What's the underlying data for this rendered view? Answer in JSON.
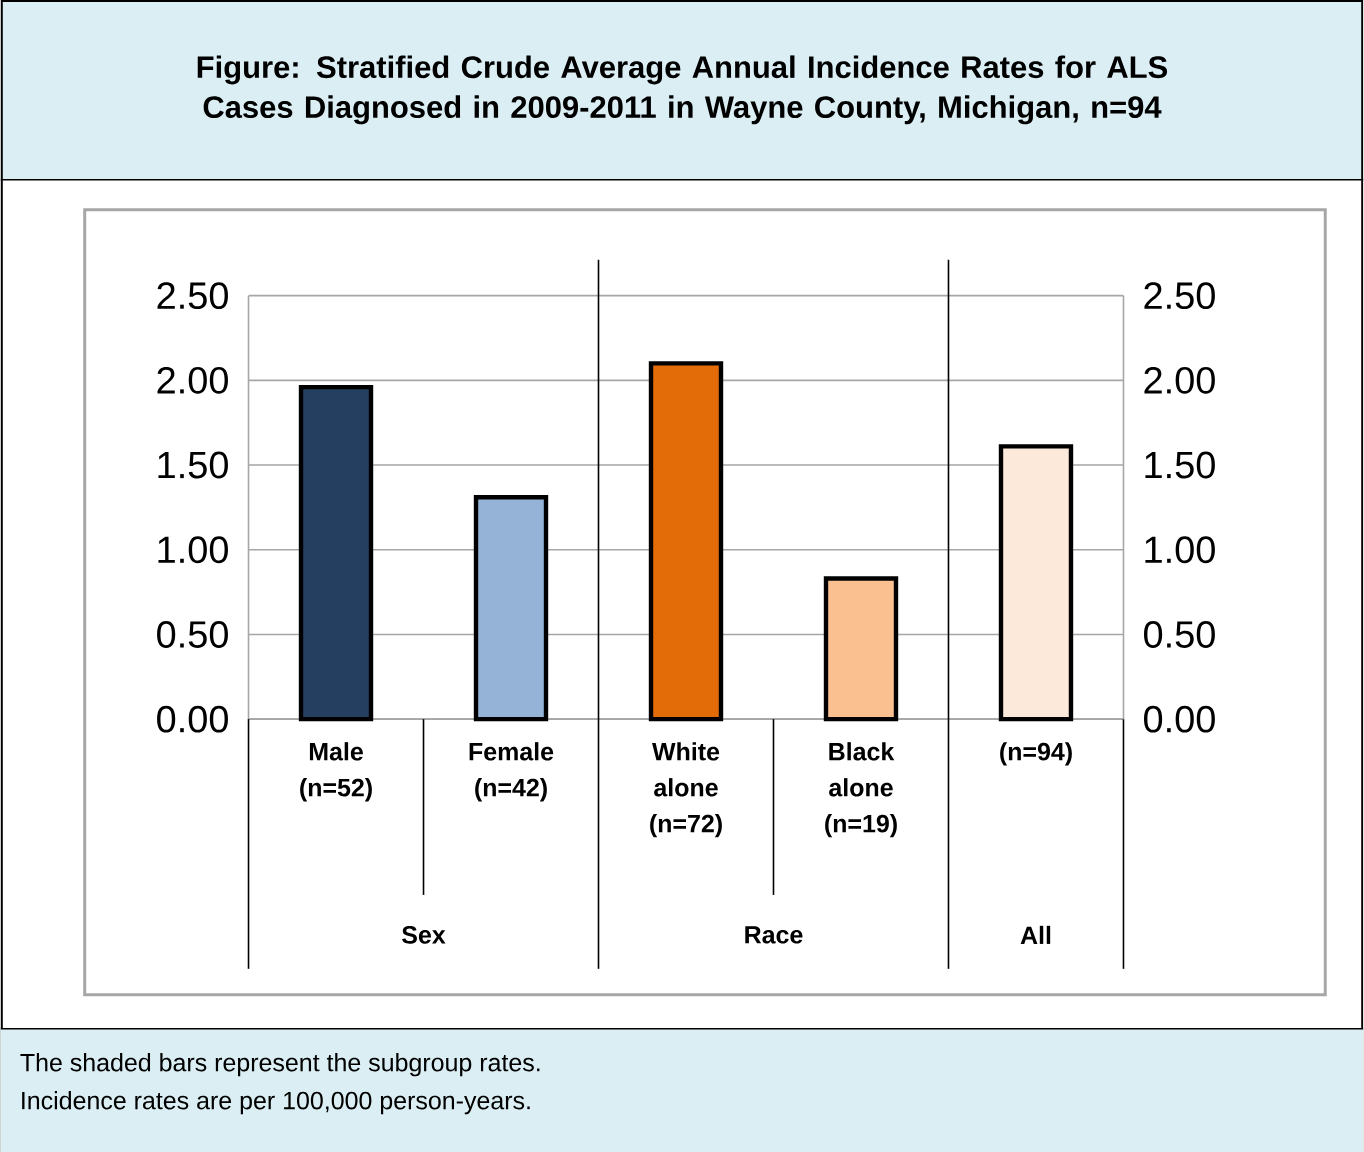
{
  "chart_data": {
    "type": "bar",
    "title": "Figure: Stratified Crude Average Annual Incidence Rates for ALS Cases Diagnosed in 2009-2011 in Wayne County, Michigan, n=94",
    "categories": [
      "Male (n=52)",
      "Female (n=42)",
      "White alone (n=72)",
      "Black alone (n=19)",
      "(n=94)"
    ],
    "values": [
      1.96,
      1.31,
      2.1,
      0.83,
      1.61
    ],
    "colors": [
      "#243f60",
      "#95b3d7",
      "#e36c09",
      "#fac090",
      "#fde9d9"
    ],
    "ylim": [
      0,
      2.5
    ],
    "yticks": [
      {
        "value": 0,
        "label": "0.00"
      },
      {
        "value": 0.5,
        "label": "0.50"
      },
      {
        "value": 1,
        "label": "1.00"
      },
      {
        "value": 1.5,
        "label": "1.50"
      },
      {
        "value": 2,
        "label": "2.00"
      },
      {
        "value": 2.5,
        "label": "2.50"
      }
    ],
    "y2lim": [
      0,
      2.5
    ],
    "y2ticks": [
      {
        "value": 0,
        "label": "0.00"
      },
      {
        "value": 0.5,
        "label": "0.50"
      },
      {
        "value": 1,
        "label": "1.00"
      },
      {
        "value": 1.5,
        "label": "1.50"
      },
      {
        "value": 2,
        "label": "2.00"
      },
      {
        "value": 2.5,
        "label": "2.50"
      }
    ],
    "grid": "y",
    "annotations": [
      "Sex",
      "Race",
      "All",
      "The shaded bars represent the subgroup rates.",
      "Incidence rates are per 100,000 person-years."
    ]
  }
}
